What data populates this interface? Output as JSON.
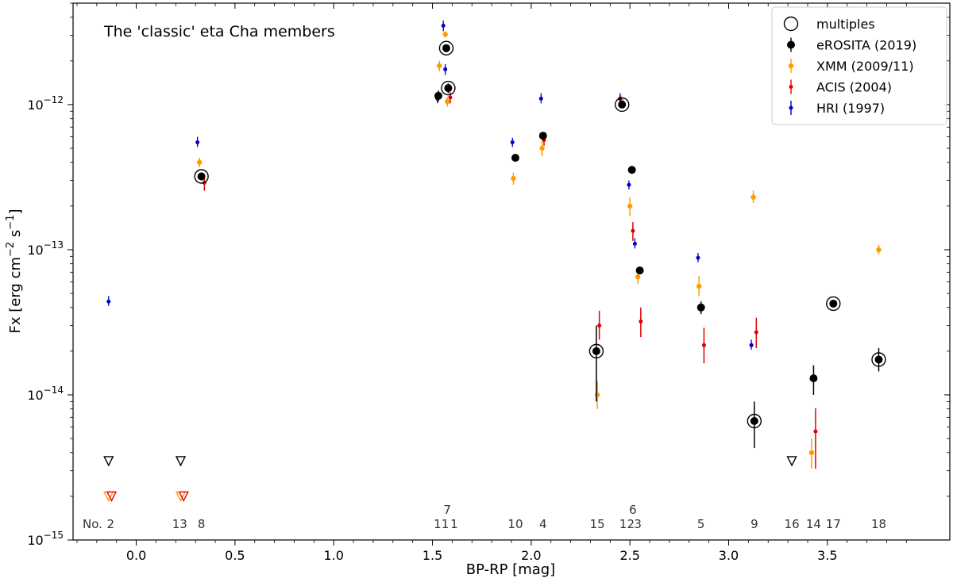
{
  "chart_data": {
    "type": "scatter",
    "title": "The 'classic' eta Cha members",
    "xlabel": "BP-RP [mag]",
    "ylabel": "Fx [erg cm^-2 s^-1]",
    "xscale": "linear",
    "yscale": "log",
    "xlim": [
      -0.32,
      4.12
    ],
    "ylim": [
      1e-15,
      5e-12
    ],
    "x_ticks": [
      0.0,
      0.5,
      1.0,
      1.5,
      2.0,
      2.5,
      3.0,
      3.5
    ],
    "x_tick_labels": [
      "0.0",
      "0.5",
      "1.0",
      "1.5",
      "2.0",
      "2.5",
      "3.0",
      "3.5"
    ],
    "y_ticks": [
      1e-15,
      1e-14,
      1e-13,
      1e-12
    ],
    "y_tick_labels": [
      "10^-15",
      "10^-14",
      "10^-13",
      "10^-12"
    ],
    "legend_position": "top-right",
    "colors": {
      "erosita": "#000000",
      "xmm": "#ff9d00",
      "acis": "#e00000",
      "hri": "#0000cc"
    },
    "legend": [
      {
        "key": "multiples",
        "label": "multiples",
        "marker": "open-circle",
        "color": "#000000"
      },
      {
        "key": "erosita",
        "label": "eROSITA (2019)",
        "marker": "filled-circle",
        "color": "#000000"
      },
      {
        "key": "xmm",
        "label": "XMM (2009/11)",
        "marker": "filled-circle",
        "color": "#ff9d00"
      },
      {
        "key": "acis",
        "label": "ACIS (2004)",
        "marker": "filled-circle",
        "color": "#e00000"
      },
      {
        "key": "hri",
        "label": "HRI (1997)",
        "marker": "filled-circle",
        "color": "#0000cc"
      }
    ],
    "series": [
      {
        "name": "eROSITA (2019)",
        "key": "erosita",
        "points": [
          {
            "x": 1.53,
            "y": 1.15e-12,
            "lo": 1.05e-12,
            "hi": 1.25e-12
          },
          {
            "x": 1.57,
            "y": 2.45e-12,
            "lo": 2.3e-12,
            "hi": 2.6e-12
          },
          {
            "x": 1.58,
            "y": 1.3e-12,
            "lo": 1.2e-12,
            "hi": 1.4e-12
          },
          {
            "x": 0.33,
            "y": 3.2e-13,
            "lo": 3e-13,
            "hi": 3.4e-13
          },
          {
            "x": 1.92,
            "y": 4.3e-13,
            "lo": 4.1e-13,
            "hi": 4.5e-13
          },
          {
            "x": 2.06,
            "y": 6.1e-13,
            "lo": 5.7e-13,
            "hi": 6.4e-13
          },
          {
            "x": 2.46,
            "y": 1e-12,
            "lo": 9.5e-13,
            "hi": 1.05e-12
          },
          {
            "x": 2.51,
            "y": 3.55e-13,
            "lo": 3.4e-13,
            "hi": 3.7e-13
          },
          {
            "x": 2.55,
            "y": 7.2e-14,
            "lo": 6.8e-14,
            "hi": 7.6e-14
          },
          {
            "x": 2.86,
            "y": 4e-14,
            "lo": 3.6e-14,
            "hi": 4.4e-14
          },
          {
            "x": 2.33,
            "y": 2e-14,
            "lo": 9e-15,
            "hi": 3e-14
          },
          {
            "x": 3.13,
            "y": 6.6e-15,
            "lo": 4.3e-15,
            "hi": 9e-15
          },
          {
            "x": 3.43,
            "y": 1.3e-14,
            "lo": 1e-14,
            "hi": 1.6e-14
          },
          {
            "x": 3.53,
            "y": 4.25e-14,
            "lo": 4e-14,
            "hi": 4.5e-14
          },
          {
            "x": 3.76,
            "y": 1.75e-14,
            "lo": 1.45e-14,
            "hi": 2.1e-14
          }
        ]
      },
      {
        "name": "XMM (2009/11)",
        "key": "xmm",
        "points": [
          {
            "x": 1.535,
            "y": 1.85e-12,
            "lo": 1.7e-12,
            "hi": 2e-12
          },
          {
            "x": 1.565,
            "y": 3.05e-12,
            "lo": 2.9e-12,
            "hi": 3.2e-12
          },
          {
            "x": 1.575,
            "y": 1.05e-12,
            "lo": 9.7e-13,
            "hi": 1.13e-12
          },
          {
            "x": 0.32,
            "y": 4e-13,
            "lo": 3.7e-13,
            "hi": 4.3e-13
          },
          {
            "x": 1.91,
            "y": 3.1e-13,
            "lo": 2.8e-13,
            "hi": 3.4e-13
          },
          {
            "x": 2.055,
            "y": 5e-13,
            "lo": 4.4e-13,
            "hi": 5.6e-13
          },
          {
            "x": 2.455,
            "y": 1.08e-12,
            "lo": 1e-12,
            "hi": 1.16e-12
          },
          {
            "x": 2.5,
            "y": 2e-13,
            "lo": 1.7e-13,
            "hi": 2.3e-13
          },
          {
            "x": 2.54,
            "y": 6.5e-14,
            "lo": 5.8e-14,
            "hi": 7.3e-14
          },
          {
            "x": 2.85,
            "y": 5.6e-14,
            "lo": 4.8e-14,
            "hi": 6.6e-14
          },
          {
            "x": 2.335,
            "y": 1e-14,
            "lo": 8e-15,
            "hi": 1.25e-14
          },
          {
            "x": 3.125,
            "y": 2.3e-13,
            "lo": 2.1e-13,
            "hi": 2.55e-13
          },
          {
            "x": 3.42,
            "y": 4e-15,
            "lo": 3.1e-15,
            "hi": 5e-15
          },
          {
            "x": 3.76,
            "y": 1e-13,
            "lo": 9.3e-14,
            "hi": 1.08e-13
          }
        ]
      },
      {
        "name": "ACIS (2004)",
        "key": "acis",
        "points": [
          {
            "x": 1.59,
            "y": 1.12e-12,
            "lo": 1.02e-12,
            "hi": 1.22e-12
          },
          {
            "x": 0.345,
            "y": 2.9e-13,
            "lo": 2.55e-13,
            "hi": 3.25e-13
          },
          {
            "x": 2.065,
            "y": 5.7e-13,
            "lo": 5.2e-13,
            "hi": 6.2e-13
          },
          {
            "x": 2.515,
            "y": 1.35e-13,
            "lo": 1.15e-13,
            "hi": 1.55e-13
          },
          {
            "x": 2.555,
            "y": 3.2e-14,
            "lo": 2.5e-14,
            "hi": 4e-14
          },
          {
            "x": 2.345,
            "y": 3e-14,
            "lo": 2.4e-14,
            "hi": 3.8e-14
          },
          {
            "x": 2.875,
            "y": 2.2e-14,
            "lo": 1.65e-14,
            "hi": 2.9e-14
          },
          {
            "x": 3.14,
            "y": 2.7e-14,
            "lo": 2.1e-14,
            "hi": 3.4e-14
          },
          {
            "x": 3.44,
            "y": 5.6e-15,
            "lo": 3.1e-15,
            "hi": 8.1e-15
          }
        ]
      },
      {
        "name": "HRI (1997)",
        "key": "hri",
        "points": [
          {
            "x": -0.14,
            "y": 4.4e-14,
            "lo": 4.1e-14,
            "hi": 4.8e-14
          },
          {
            "x": 0.31,
            "y": 5.5e-13,
            "lo": 5.1e-13,
            "hi": 6e-13
          },
          {
            "x": 1.525,
            "y": 1.1e-12,
            "lo": 1.02e-12,
            "hi": 1.2e-12
          },
          {
            "x": 1.555,
            "y": 3.5e-12,
            "lo": 3.2e-12,
            "hi": 3.8e-12
          },
          {
            "x": 1.565,
            "y": 1.75e-12,
            "lo": 1.6e-12,
            "hi": 1.9e-12
          },
          {
            "x": 1.905,
            "y": 5.5e-13,
            "lo": 5.1e-13,
            "hi": 5.9e-13
          },
          {
            "x": 2.05,
            "y": 1.1e-12,
            "lo": 1.02e-12,
            "hi": 1.2e-12
          },
          {
            "x": 2.45,
            "y": 1.1e-12,
            "lo": 1.02e-12,
            "hi": 1.2e-12
          },
          {
            "x": 2.495,
            "y": 2.8e-13,
            "lo": 2.6e-13,
            "hi": 3e-13
          },
          {
            "x": 2.525,
            "y": 1.1e-13,
            "lo": 1.02e-13,
            "hi": 1.2e-13
          },
          {
            "x": 2.845,
            "y": 8.8e-14,
            "lo": 8.2e-14,
            "hi": 9.5e-14
          },
          {
            "x": 3.115,
            "y": 2.2e-14,
            "lo": 2.05e-14,
            "hi": 2.4e-14
          }
        ]
      }
    ],
    "multiples": [
      {
        "x": 1.57,
        "y": 2.45e-12
      },
      {
        "x": 1.58,
        "y": 1.3e-12
      },
      {
        "x": 0.33,
        "y": 3.2e-13
      },
      {
        "x": 2.46,
        "y": 1e-12
      },
      {
        "x": 2.33,
        "y": 2e-14
      },
      {
        "x": 3.13,
        "y": 6.6e-15
      },
      {
        "x": 3.53,
        "y": 4.25e-14
      },
      {
        "x": 3.76,
        "y": 1.75e-14
      }
    ],
    "upper_limits": [
      {
        "x": -0.14,
        "y": 3.5e-15,
        "color": "#000000"
      },
      {
        "x": 0.225,
        "y": 3.5e-15,
        "color": "#000000"
      },
      {
        "x": 3.32,
        "y": 3.5e-15,
        "color": "#000000"
      },
      {
        "x": -0.14,
        "y": 2e-15,
        "color": "#ff9d00"
      },
      {
        "x": -0.125,
        "y": 2e-15,
        "color": "#e00000"
      },
      {
        "x": 0.225,
        "y": 2e-15,
        "color": "#ff9d00"
      },
      {
        "x": 0.24,
        "y": 2e-15,
        "color": "#e00000"
      }
    ],
    "star_numbers_prefix": "No.",
    "star_numbers": [
      {
        "label": "2",
        "x": -0.13,
        "row": 0
      },
      {
        "label": "13",
        "x": 0.22,
        "row": 0
      },
      {
        "label": "8",
        "x": 0.33,
        "row": 0
      },
      {
        "label": "11",
        "x": 1.545,
        "row": 0
      },
      {
        "label": "1",
        "x": 1.61,
        "row": 0
      },
      {
        "label": "7",
        "x": 1.575,
        "row": 1
      },
      {
        "label": "10",
        "x": 1.92,
        "row": 0
      },
      {
        "label": "4",
        "x": 2.06,
        "row": 0
      },
      {
        "label": "15",
        "x": 2.335,
        "row": 0
      },
      {
        "label": "12",
        "x": 2.485,
        "row": 0
      },
      {
        "label": "3",
        "x": 2.54,
        "row": 0
      },
      {
        "label": "6",
        "x": 2.515,
        "row": 1
      },
      {
        "label": "5",
        "x": 2.86,
        "row": 0
      },
      {
        "label": "9",
        "x": 3.13,
        "row": 0
      },
      {
        "label": "16",
        "x": 3.32,
        "row": 0
      },
      {
        "label": "14",
        "x": 3.43,
        "row": 0
      },
      {
        "label": "17",
        "x": 3.53,
        "row": 0
      },
      {
        "label": "18",
        "x": 3.76,
        "row": 0
      }
    ]
  }
}
